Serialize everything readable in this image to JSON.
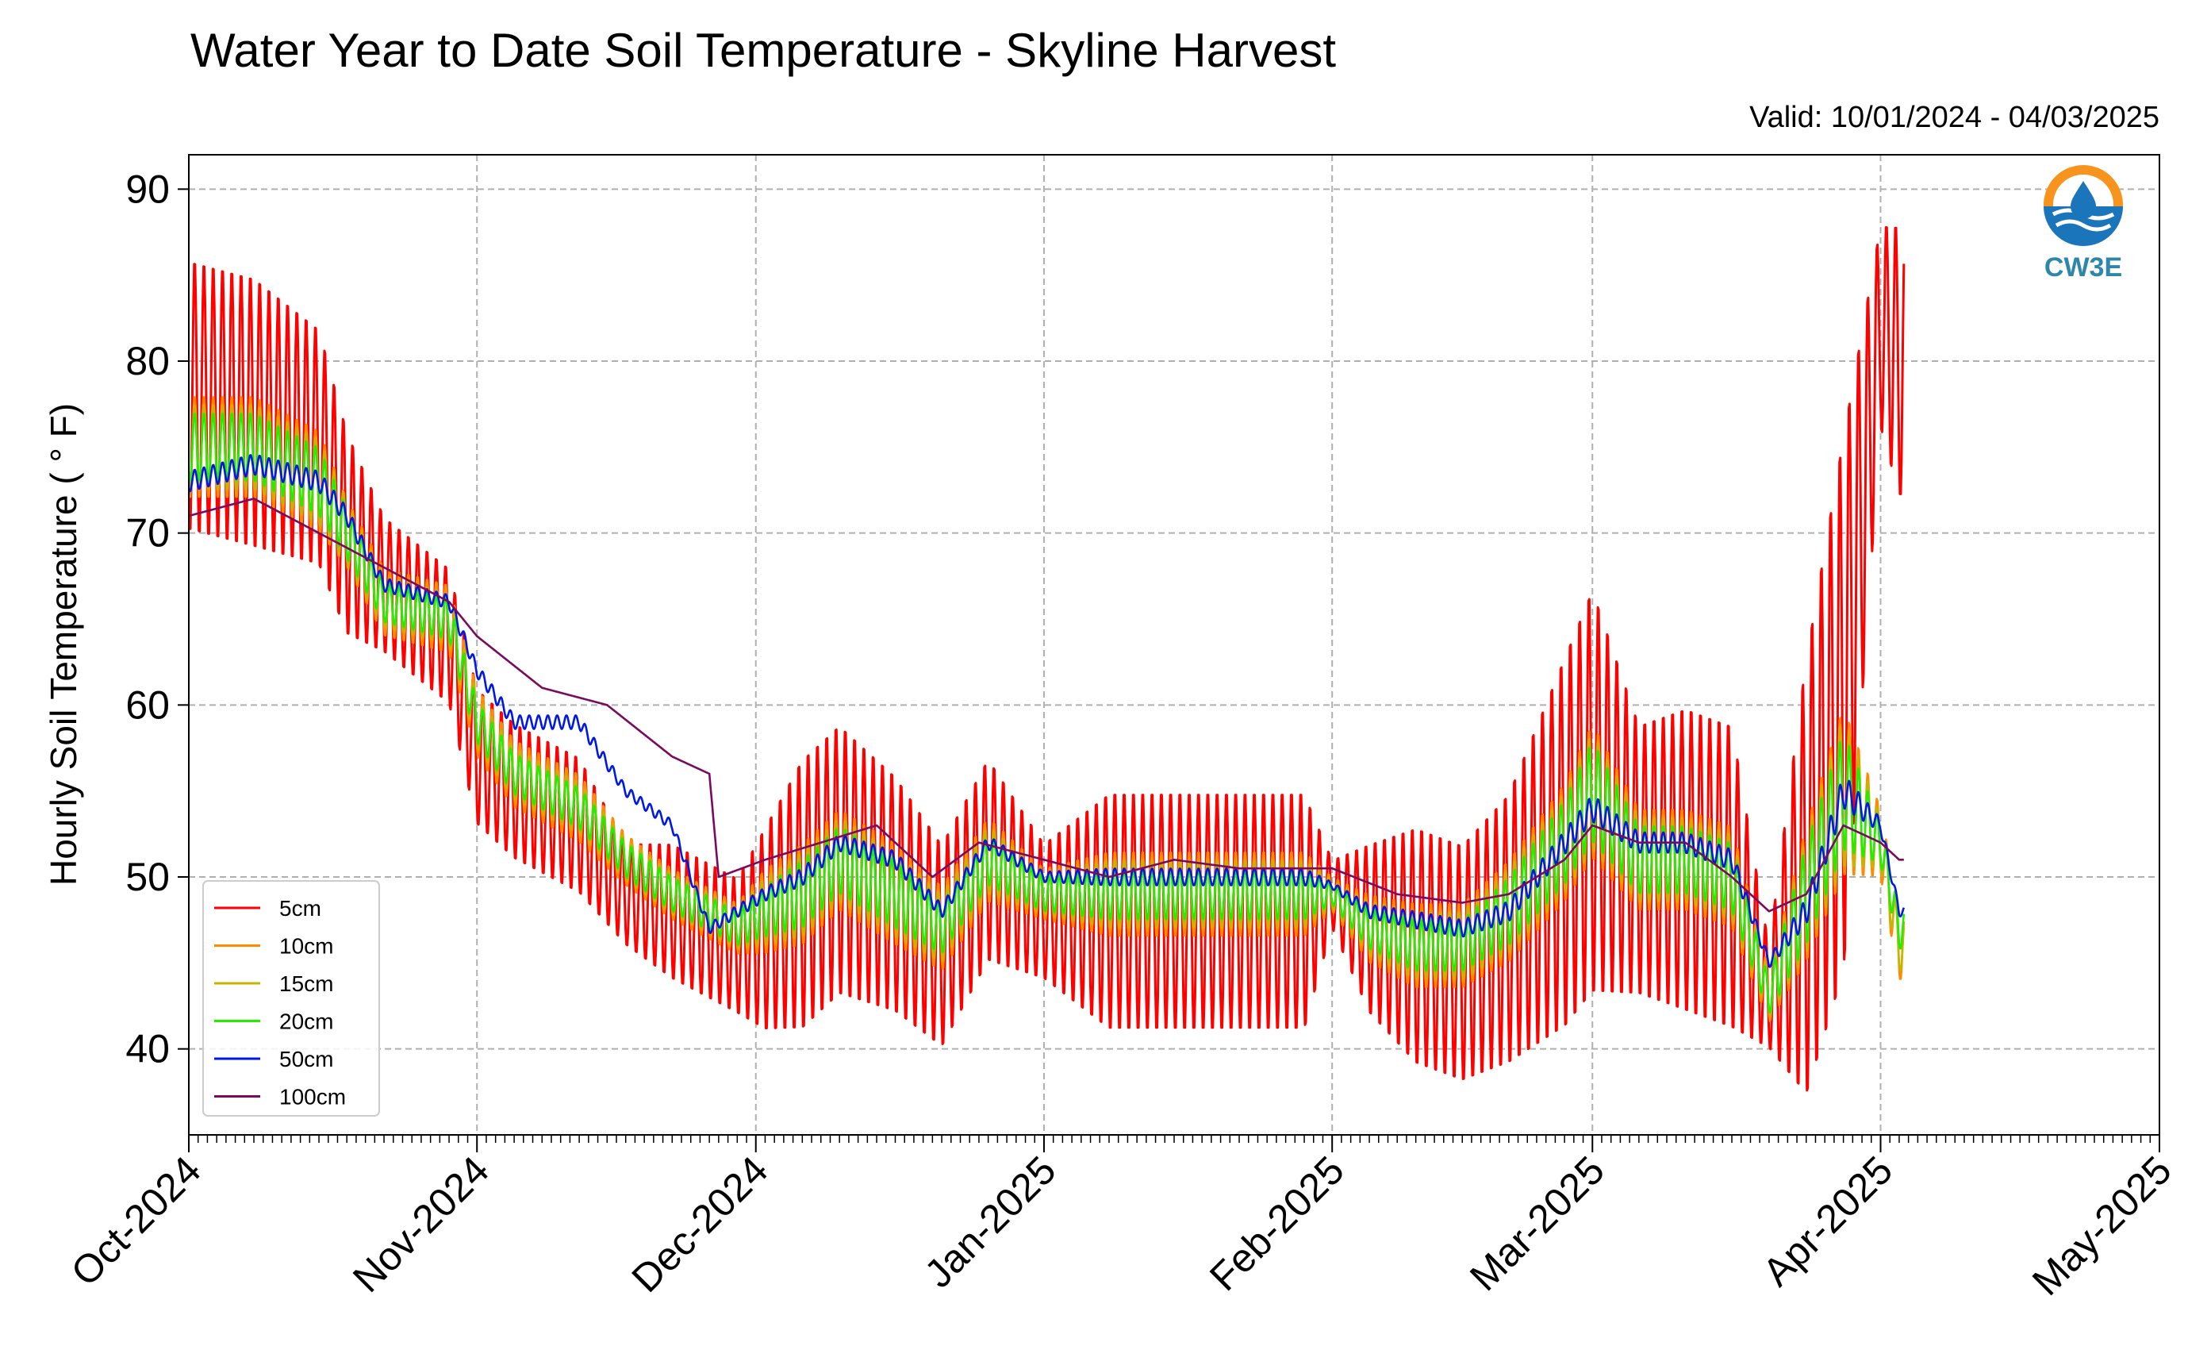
{
  "chart_data": {
    "type": "line",
    "title": "Water Year to Date Soil Temperature - Skyline Harvest",
    "subtitle": "Valid: 10/01/2024 - 04/03/2025",
    "ylabel": "Hourly Soil Temperature ($^\\circ$F)",
    "ylabel_display": "Hourly Soil Temperature ( ° F)",
    "xlabel": "",
    "ylim": [
      35,
      92
    ],
    "y_ticks": [
      40,
      50,
      60,
      70,
      80,
      90
    ],
    "x_range": [
      "2024-10-01",
      "2025-05-01"
    ],
    "x_ticks": [
      {
        "date": "2024-10-01",
        "label": "Oct-2024"
      },
      {
        "date": "2024-11-01",
        "label": "Nov-2024"
      },
      {
        "date": "2024-12-01",
        "label": "Dec-2024"
      },
      {
        "date": "2025-01-01",
        "label": "Jan-2025"
      },
      {
        "date": "2025-02-01",
        "label": "Feb-2025"
      },
      {
        "date": "2025-03-01",
        "label": "Mar-2025"
      },
      {
        "date": "2025-04-01",
        "label": "Apr-2025"
      },
      {
        "date": "2025-05-01",
        "label": "May-2025"
      }
    ],
    "grid": true,
    "legend_position": "lower-left",
    "logo": "CW3E",
    "series": [
      {
        "name": "5cm",
        "color": "#ff0000",
        "dates": [
          "2024-10-01",
          "2024-10-08",
          "2024-10-15",
          "2024-10-18",
          "2024-10-22",
          "2024-10-29",
          "2024-11-01",
          "2024-11-05",
          "2024-11-12",
          "2024-11-17",
          "2024-11-22",
          "2024-11-29",
          "2024-12-02",
          "2024-12-06",
          "2024-12-10",
          "2024-12-16",
          "2024-12-21",
          "2024-12-26",
          "2025-01-01",
          "2025-01-08",
          "2025-01-15",
          "2025-01-22",
          "2025-01-29",
          "2025-02-01",
          "2025-02-05",
          "2025-02-10",
          "2025-02-15",
          "2025-02-20",
          "2025-02-26",
          "2025-03-01",
          "2025-03-06",
          "2025-03-11",
          "2025-03-16",
          "2025-03-20",
          "2025-03-24",
          "2025-03-28",
          "2025-04-01",
          "2025-04-03"
        ],
        "mean": [
          78,
          77,
          75,
          70,
          67,
          64,
          57,
          55,
          53,
          49,
          48,
          46,
          47,
          49,
          51,
          49,
          46,
          51,
          48,
          48,
          48,
          48,
          48,
          49,
          47,
          46,
          45,
          47,
          52,
          55,
          51,
          51,
          50,
          43,
          50,
          60,
          82,
          80
        ],
        "amplitude": [
          8,
          8,
          7,
          6,
          4,
          4,
          4,
          4,
          4,
          3,
          4,
          4,
          6,
          8,
          8,
          7,
          6,
          6,
          4,
          7,
          7,
          7,
          7,
          2,
          5,
          7,
          7,
          8,
          11,
          12,
          8,
          9,
          9,
          3,
          13,
          16,
          6,
          8
        ]
      },
      {
        "name": "10cm",
        "color": "#ff8c00",
        "dates": [
          "2024-10-01",
          "2024-10-08",
          "2024-10-15",
          "2024-10-18",
          "2024-10-22",
          "2024-10-29",
          "2024-11-01",
          "2024-11-05",
          "2024-11-12",
          "2024-11-17",
          "2024-11-22",
          "2024-11-29",
          "2024-12-02",
          "2024-12-06",
          "2024-12-10",
          "2024-12-16",
          "2024-12-21",
          "2024-12-26",
          "2025-01-01",
          "2025-01-08",
          "2025-01-15",
          "2025-01-22",
          "2025-01-29",
          "2025-02-01",
          "2025-02-05",
          "2025-02-10",
          "2025-02-15",
          "2025-02-20",
          "2025-02-26",
          "2025-03-01",
          "2025-03-06",
          "2025-03-11",
          "2025-03-16",
          "2025-03-20",
          "2025-03-24",
          "2025-03-28",
          "2025-04-01",
          "2025-04-03"
        ],
        "mean": [
          75,
          75,
          73,
          70,
          66,
          65,
          59,
          56,
          54,
          51,
          49,
          47,
          48,
          49,
          51,
          49,
          47,
          51,
          49,
          49,
          49,
          49,
          49,
          49,
          47,
          46,
          46,
          48,
          52,
          55,
          51,
          51,
          50,
          43,
          49,
          55,
          52,
          46
        ],
        "amplitude": [
          3,
          3,
          3,
          2,
          2,
          2,
          2,
          2,
          2,
          1.5,
          1.5,
          1.5,
          2.5,
          3,
          3,
          3,
          2.5,
          2.5,
          1.5,
          2.5,
          2.5,
          2.5,
          2.5,
          1,
          2,
          2.5,
          2.5,
          3,
          3.5,
          4,
          3,
          3,
          3,
          1.5,
          4,
          5,
          2,
          2
        ]
      },
      {
        "name": "15cm",
        "color": "#c8b400",
        "dates": [
          "2024-10-01",
          "2024-10-08",
          "2024-10-15",
          "2024-10-18",
          "2024-10-22",
          "2024-10-29",
          "2024-11-01",
          "2024-11-05",
          "2024-11-12",
          "2024-11-17",
          "2024-11-22",
          "2024-11-29",
          "2024-12-02",
          "2024-12-06",
          "2024-12-10",
          "2024-12-16",
          "2024-12-21",
          "2024-12-26",
          "2025-01-01",
          "2025-01-08",
          "2025-01-15",
          "2025-01-22",
          "2025-01-29",
          "2025-02-01",
          "2025-02-05",
          "2025-02-10",
          "2025-02-15",
          "2025-02-20",
          "2025-02-26",
          "2025-03-01",
          "2025-03-06",
          "2025-03-11",
          "2025-03-16",
          "2025-03-20",
          "2025-03-24",
          "2025-03-28",
          "2025-04-01",
          "2025-04-03"
        ],
        "mean": [
          75,
          75,
          73,
          70,
          66,
          65,
          59,
          56,
          54,
          51,
          49,
          47,
          48,
          49,
          51,
          49,
          47,
          51,
          49,
          49,
          49,
          49,
          49,
          49,
          47,
          46,
          46,
          48,
          52,
          55,
          51,
          51,
          50,
          43,
          49,
          55,
          52,
          46
        ],
        "amplitude": [
          2.5,
          2.5,
          2.5,
          2,
          1.5,
          1.5,
          1.5,
          1.5,
          1.5,
          1.2,
          1.2,
          1.2,
          2,
          2.5,
          2.5,
          2.5,
          2,
          2,
          1.2,
          2,
          2,
          2,
          2,
          0.8,
          1.6,
          2,
          2,
          2.5,
          3,
          3.5,
          2.5,
          2.5,
          2.5,
          1.2,
          3.5,
          4.5,
          1.5,
          1.5
        ]
      },
      {
        "name": "20cm",
        "color": "#22ee00",
        "dates": [
          "2024-10-01",
          "2024-10-08",
          "2024-10-15",
          "2024-10-18",
          "2024-10-22",
          "2024-10-29",
          "2024-11-01",
          "2024-11-05",
          "2024-11-12",
          "2024-11-17",
          "2024-11-22",
          "2024-11-29",
          "2024-12-02",
          "2024-12-06",
          "2024-12-10",
          "2024-12-16",
          "2024-12-21",
          "2024-12-26",
          "2025-01-01",
          "2025-01-08",
          "2025-01-15",
          "2025-01-22",
          "2025-01-29",
          "2025-02-01",
          "2025-02-05",
          "2025-02-10",
          "2025-02-15",
          "2025-02-20",
          "2025-02-26",
          "2025-03-01",
          "2025-03-06",
          "2025-03-11",
          "2025-03-16",
          "2025-03-20",
          "2025-03-24",
          "2025-03-28",
          "2025-04-01",
          "2025-04-03"
        ],
        "mean": [
          75,
          75,
          73,
          70,
          66,
          65,
          59,
          56,
          54,
          51,
          49,
          47,
          48,
          49,
          51,
          49,
          47,
          51,
          49,
          49,
          49,
          49,
          49,
          49,
          47,
          46,
          46,
          48,
          52,
          55,
          51,
          51,
          50,
          43,
          49,
          55,
          52,
          47
        ],
        "amplitude": [
          2,
          2,
          2,
          1.5,
          1.2,
          1.2,
          1.2,
          1.2,
          1.2,
          1,
          1,
          1,
          1.5,
          2,
          2,
          2,
          1.5,
          1.5,
          1,
          1.5,
          1.5,
          1.5,
          1.5,
          0.6,
          1.2,
          1.5,
          1.5,
          2,
          2.5,
          3,
          2,
          2,
          2,
          1,
          3,
          3.5,
          1.2,
          1.2
        ]
      },
      {
        "name": "50cm",
        "color": "#0018e6",
        "dates": [
          "2024-10-01",
          "2024-10-08",
          "2024-10-15",
          "2024-10-18",
          "2024-10-22",
          "2024-10-29",
          "2024-11-01",
          "2024-11-05",
          "2024-11-12",
          "2024-11-17",
          "2024-11-22",
          "2024-11-26",
          "2024-12-02",
          "2024-12-06",
          "2024-12-10",
          "2024-12-16",
          "2024-12-21",
          "2024-12-26",
          "2025-01-01",
          "2025-01-08",
          "2025-01-15",
          "2025-01-22",
          "2025-01-29",
          "2025-02-01",
          "2025-02-05",
          "2025-02-10",
          "2025-02-15",
          "2025-02-20",
          "2025-02-26",
          "2025-03-01",
          "2025-03-06",
          "2025-03-11",
          "2025-03-16",
          "2025-03-20",
          "2025-03-24",
          "2025-03-28",
          "2025-04-01",
          "2025-04-03"
        ],
        "mean": [
          73,
          74,
          73,
          71,
          67,
          66,
          62,
          59,
          59,
          55,
          53,
          47,
          49,
          50,
          52,
          51,
          48,
          52,
          50,
          50,
          50,
          50,
          50,
          49.5,
          48,
          47.5,
          47,
          48,
          52,
          54,
          52,
          52,
          51,
          45,
          48,
          55,
          53,
          48
        ],
        "amplitude": [
          0.6,
          0.6,
          0.6,
          0.5,
          0.4,
          0.4,
          0.4,
          0.4,
          0.4,
          0.3,
          0.3,
          0.3,
          0.4,
          0.5,
          0.5,
          0.5,
          0.4,
          0.4,
          0.3,
          0.5,
          0.5,
          0.5,
          0.5,
          0.2,
          0.4,
          0.5,
          0.5,
          0.6,
          0.7,
          0.8,
          0.6,
          0.6,
          0.6,
          0.3,
          0.8,
          1,
          0.4,
          0.3
        ]
      },
      {
        "name": "100cm",
        "color": "#7a0a5e",
        "dates": [
          "2024-10-01",
          "2024-10-08",
          "2024-10-15",
          "2024-10-22",
          "2024-10-29",
          "2024-11-01",
          "2024-11-08",
          "2024-11-15",
          "2024-11-22",
          "2024-11-26",
          "2024-11-27",
          "2024-12-02",
          "2024-12-08",
          "2024-12-14",
          "2024-12-20",
          "2024-12-25",
          "2025-01-01",
          "2025-01-08",
          "2025-01-15",
          "2025-01-22",
          "2025-01-29",
          "2025-02-01",
          "2025-02-08",
          "2025-02-15",
          "2025-02-20",
          "2025-02-26",
          "2025-03-01",
          "2025-03-06",
          "2025-03-11",
          "2025-03-16",
          "2025-03-20",
          "2025-03-24",
          "2025-03-28",
          "2025-04-01",
          "2025-04-03"
        ],
        "mean": [
          71,
          72,
          70,
          68,
          66,
          64,
          61,
          60,
          57,
          56,
          50,
          51,
          52,
          53,
          50,
          52,
          51,
          50,
          51,
          50.5,
          50.5,
          50.5,
          49,
          48.5,
          49,
          51,
          53,
          52,
          52,
          50,
          48,
          49,
          53,
          52,
          51
        ],
        "amplitude": [
          0,
          0,
          0,
          0,
          0,
          0,
          0,
          0,
          0,
          0,
          0,
          0,
          0,
          0,
          0,
          0,
          0,
          0,
          0,
          0,
          0,
          0,
          0,
          0,
          0,
          0,
          0,
          0,
          0,
          0,
          0,
          0,
          0,
          0,
          0
        ]
      }
    ]
  }
}
